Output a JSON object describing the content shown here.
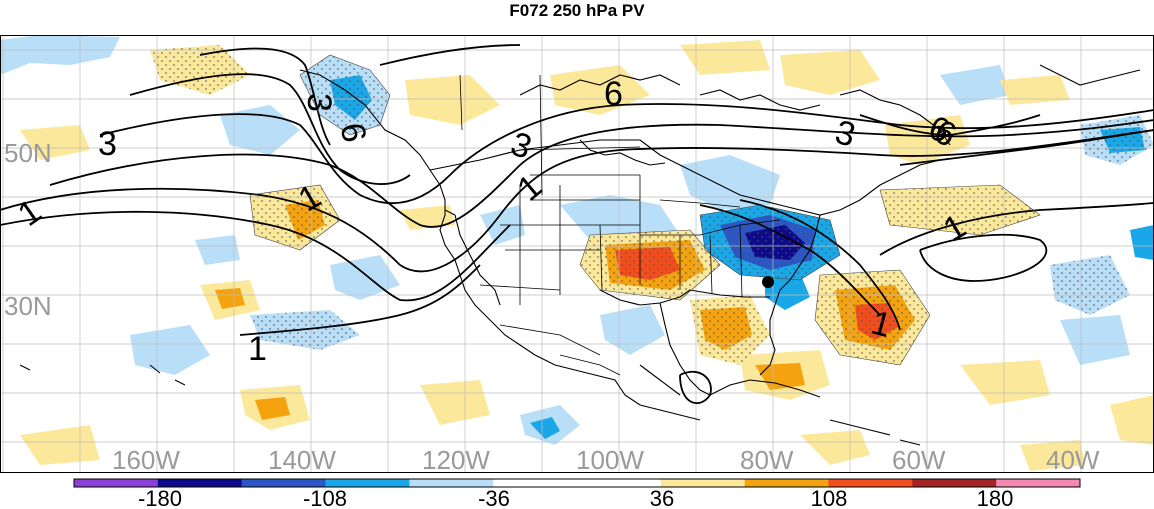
{
  "title": "F072 250 hPa PV",
  "map": {
    "latitude_labels": [
      "50N",
      "30N"
    ],
    "longitude_labels": [
      "160W",
      "140W",
      "120W",
      "100W",
      "80W",
      "60W",
      "40W"
    ],
    "pv_contour_labels": [
      "3",
      "3",
      "6",
      "6",
      "3",
      "6",
      "3",
      "6",
      "1",
      "1",
      "1",
      "1",
      "1",
      "1"
    ],
    "marker": "black-dot"
  },
  "colorbar": {
    "tick_labels": [
      "-180",
      "-108",
      "-36",
      "36",
      "108",
      "180"
    ],
    "colors": [
      "#8b3fd6",
      "#0d0b8c",
      "#2b57c6",
      "#19a7e8",
      "#b9def7",
      "#ffffff",
      "#ffffff",
      "#fbe89a",
      "#f5a20f",
      "#f24d1c",
      "#a42323",
      "#f489b2"
    ]
  }
}
